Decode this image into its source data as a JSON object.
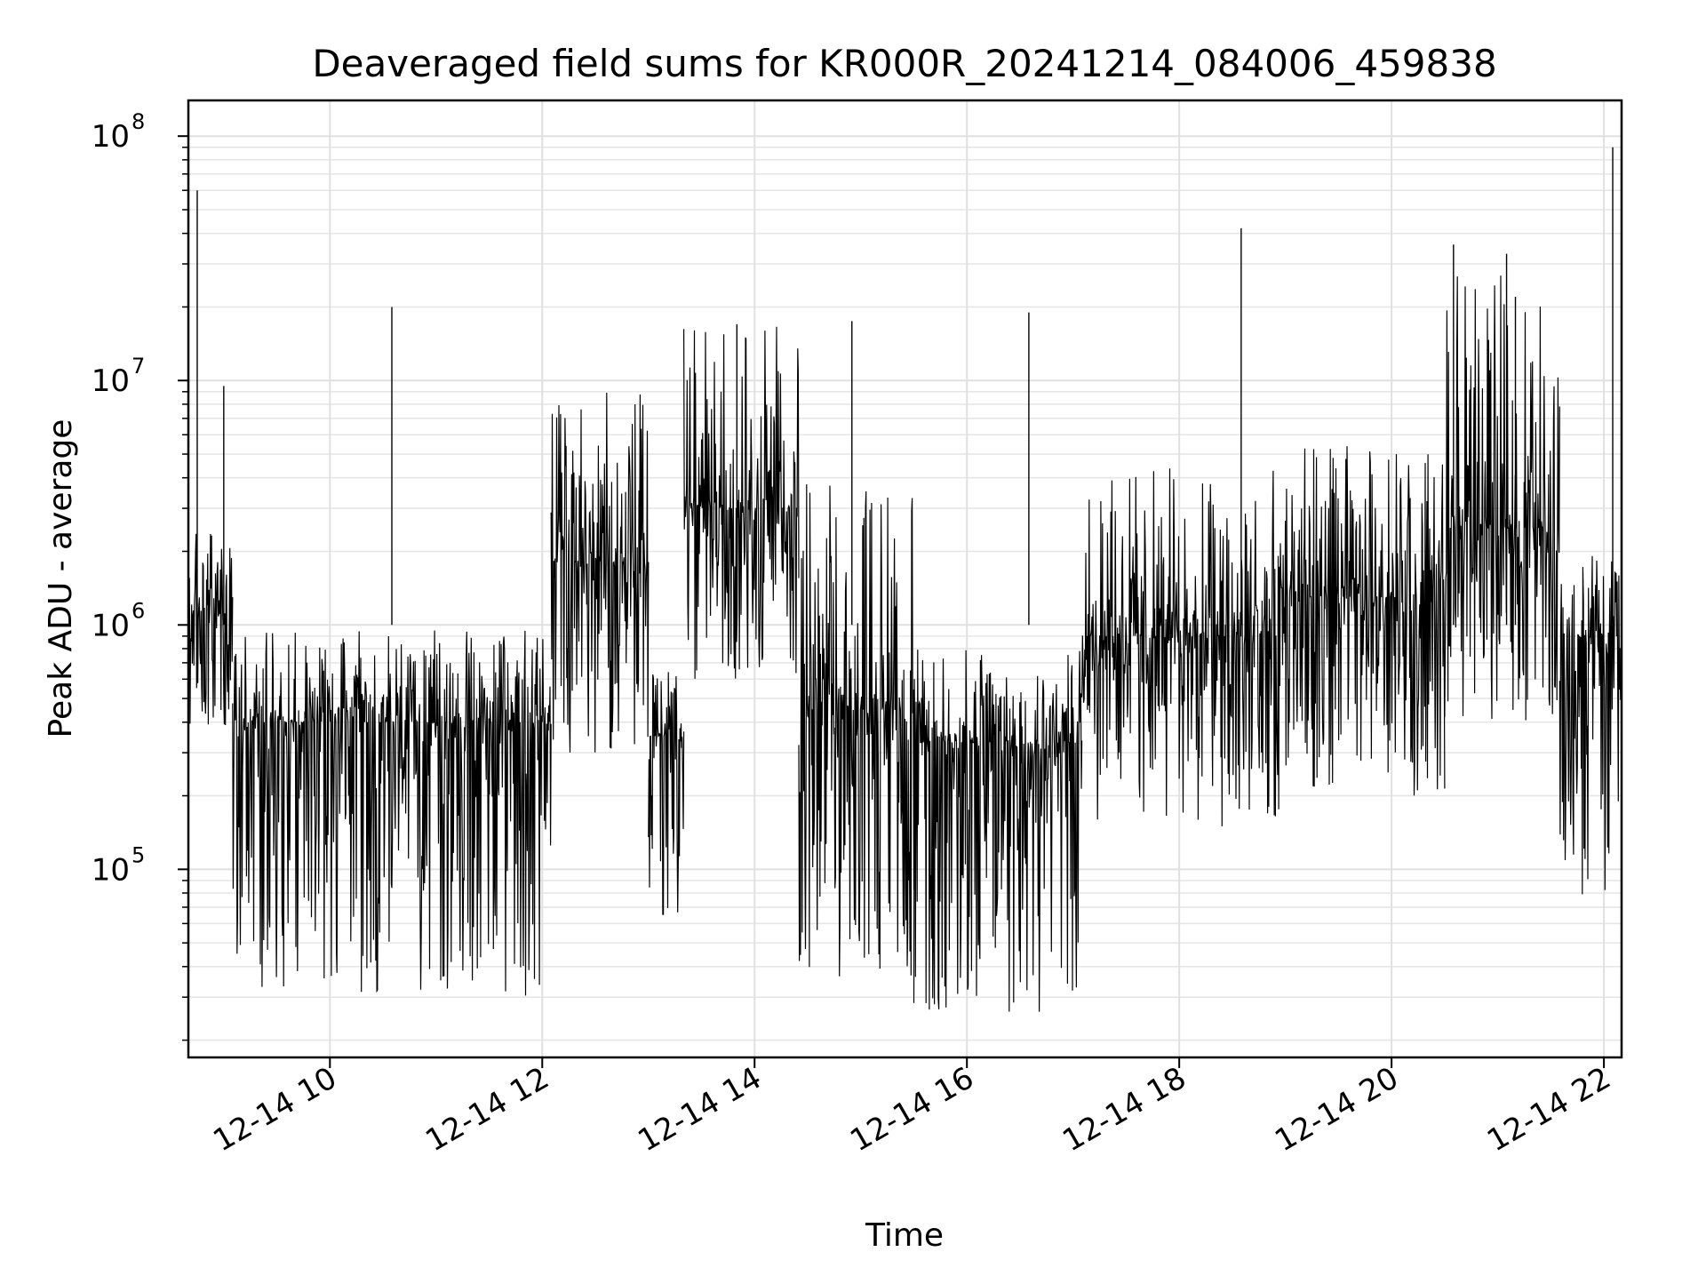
{
  "chart_data": {
    "type": "line",
    "title": "Deaveraged field sums for KR000R_20241214_084006_459838",
    "xlabel": "Time",
    "ylabel": "Peak ADU - average",
    "yscale": "log",
    "grid": true,
    "xlim": [
      "12-14 08:40",
      "12-14 22:10"
    ],
    "ylim": [
      17000,
      140000000
    ],
    "x_ticks": [
      "12-14 10",
      "12-14 12",
      "12-14 14",
      "12-14 16",
      "12-14 18",
      "12-14 20",
      "12-14 22"
    ],
    "y_ticks": [
      {
        "base": "10",
        "exp": "5",
        "value": 100000
      },
      {
        "base": "10",
        "exp": "6",
        "value": 1000000
      },
      {
        "base": "10",
        "exp": "7",
        "value": 10000000
      },
      {
        "base": "10",
        "exp": "8",
        "value": 100000000
      }
    ],
    "line_color": "#000000",
    "series": [
      {
        "name": "",
        "segments": [
          {
            "start": "12-14 08:40",
            "end": "12-14 09:05",
            "median": 1200000,
            "low": 380000,
            "high": 2500000
          },
          {
            "start": "12-14 09:05",
            "end": "12-14 12:05",
            "median": 400000,
            "low": 30000,
            "high": 950000
          },
          {
            "start": "12-14 12:05",
            "end": "12-14 13:00",
            "median": 1800000,
            "low": 300000,
            "high": 9000000
          },
          {
            "start": "12-14 13:00",
            "end": "12-14 13:20",
            "median": 350000,
            "low": 52000,
            "high": 700000
          },
          {
            "start": "12-14 13:20",
            "end": "12-14 14:25",
            "median": 3000000,
            "low": 600000,
            "high": 17000000
          },
          {
            "start": "12-14 14:25",
            "end": "12-14 15:30",
            "median": 450000,
            "low": 35000,
            "high": 4000000
          },
          {
            "start": "12-14 15:30",
            "end": "12-14 17:05",
            "median": 330000,
            "low": 25000,
            "high": 800000
          },
          {
            "start": "12-14 17:05",
            "end": "12-14 19:00",
            "median": 900000,
            "low": 150000,
            "high": 4500000
          },
          {
            "start": "12-14 19:00",
            "end": "12-14 20:30",
            "median": 1300000,
            "low": 200000,
            "high": 5500000
          },
          {
            "start": "12-14 20:30",
            "end": "12-14 21:35",
            "median": 2500000,
            "low": 400000,
            "high": 27000000
          },
          {
            "start": "12-14 21:35",
            "end": "12-14 22:10",
            "median": 900000,
            "low": 75000,
            "high": 2000000
          }
        ],
        "spikes": [
          {
            "x": "12-14 08:45",
            "y": 60000000
          },
          {
            "x": "12-14 09:00",
            "y": 9500000
          },
          {
            "x": "12-14 10:35",
            "y": 20000000
          },
          {
            "x": "12-14 13:50",
            "y": 17000000
          },
          {
            "x": "12-14 14:55",
            "y": 17500000
          },
          {
            "x": "12-14 16:35",
            "y": 19000000
          },
          {
            "x": "12-14 18:35",
            "y": 42000000
          },
          {
            "x": "12-14 20:35",
            "y": 36000000
          },
          {
            "x": "12-14 21:05",
            "y": 33000000
          },
          {
            "x": "12-14 21:10",
            "y": 22000000
          },
          {
            "x": "12-14 22:05",
            "y": 90000000
          }
        ]
      }
    ]
  }
}
